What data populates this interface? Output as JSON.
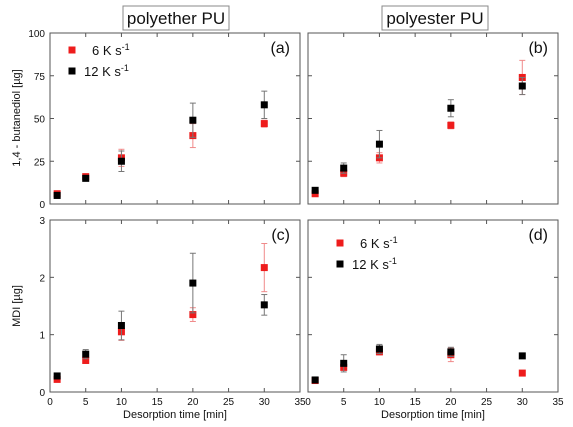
{
  "column_titles": [
    "polyether PU",
    "polyester PU"
  ],
  "colors": {
    "s6": "#ee1c1c",
    "s12": "#000000",
    "err6": "#f08a8a",
    "err12": "#777777",
    "axis": "#555555"
  },
  "shared_x_axis": {
    "label": "Desorption time [min]",
    "ticks": [
      0,
      5,
      10,
      15,
      20,
      25,
      30,
      35
    ],
    "range": [
      0,
      35
    ]
  },
  "chart_data": [
    {
      "type": "scatter",
      "panel_label": "(a)",
      "column": "polyether PU",
      "ylabel": "1,4 - butanediol [µg]",
      "ylim": [
        0,
        100
      ],
      "yticks": [
        0,
        25,
        50,
        75,
        100
      ],
      "xlim": [
        0,
        35
      ],
      "legend_placement": "top-left",
      "series": [
        {
          "name": "6 K s-1",
          "x": [
            1,
            5,
            10,
            20,
            30
          ],
          "y": [
            6,
            16,
            27,
            40,
            47
          ],
          "err": [
            1,
            1,
            5,
            7,
            2
          ]
        },
        {
          "name": "12 K s-1",
          "x": [
            1,
            5,
            10,
            20,
            30
          ],
          "y": [
            5,
            15,
            25,
            49,
            58
          ],
          "err": [
            1,
            1,
            6,
            10,
            8
          ]
        }
      ]
    },
    {
      "type": "scatter",
      "panel_label": "(b)",
      "column": "polyester PU",
      "ylabel": "",
      "ylim": [
        0,
        100
      ],
      "yticks": [
        0,
        25,
        50,
        75,
        100
      ],
      "xlim": [
        0,
        35
      ],
      "series": [
        {
          "x": [
            1,
            5,
            10,
            20,
            30
          ],
          "y": [
            6,
            18,
            27,
            46,
            74
          ],
          "err": [
            1,
            2,
            3,
            2,
            10
          ]
        },
        {
          "x": [
            1,
            5,
            10,
            20,
            30
          ],
          "y": [
            8,
            21,
            35,
            56,
            69
          ],
          "err": [
            1,
            3,
            8,
            5,
            5
          ]
        }
      ]
    },
    {
      "type": "scatter",
      "panel_label": "(c)",
      "column": "polyether PU",
      "ylabel": "MDI [µg]",
      "ylim": [
        0,
        3
      ],
      "yticks": [
        0,
        1,
        2,
        3
      ],
      "xlim": [
        0,
        35
      ],
      "series": [
        {
          "x": [
            1,
            5,
            10,
            20,
            30
          ],
          "y": [
            0.22,
            0.55,
            1.05,
            1.35,
            2.17
          ],
          "err": [
            0.03,
            0.05,
            0.15,
            0.12,
            0.42
          ]
        },
        {
          "x": [
            1,
            5,
            10,
            20,
            30
          ],
          "y": [
            0.28,
            0.66,
            1.16,
            1.9,
            1.52
          ],
          "err": [
            0.03,
            0.08,
            0.25,
            0.52,
            0.18
          ]
        }
      ]
    },
    {
      "type": "scatter",
      "panel_label": "(d)",
      "column": "polyester PU",
      "ylabel": "",
      "ylim": [
        0,
        3
      ],
      "yticks": [
        0,
        1,
        2,
        3
      ],
      "xlim": [
        0,
        35
      ],
      "legend_placement": "top-left",
      "series": [
        {
          "name": "6 K s-1",
          "x": [
            1,
            5,
            10,
            20,
            30
          ],
          "y": [
            0.2,
            0.43,
            0.7,
            0.65,
            0.33
          ],
          "err": [
            0.02,
            0.05,
            0.05,
            0.12,
            0.03
          ]
        },
        {
          "name": "12 K s-1",
          "x": [
            1,
            5,
            10,
            20,
            30
          ],
          "y": [
            0.21,
            0.5,
            0.75,
            0.7,
            0.63
          ],
          "err": [
            0.03,
            0.15,
            0.08,
            0.08,
            0.03
          ]
        }
      ]
    }
  ]
}
